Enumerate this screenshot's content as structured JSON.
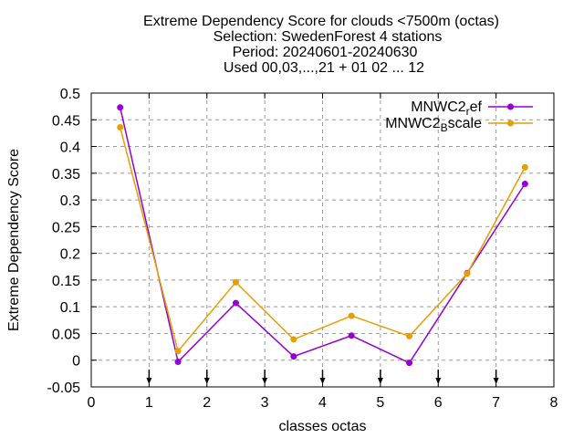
{
  "chart_data": {
    "type": "line",
    "title_lines": [
      "Extreme Dependency Score  for clouds <7500m (octas)",
      "Selection: SwedenForest      4 stations",
      "Period: 20240601-20240630",
      "Used 00,03,...,21 + 01 02 ... 12"
    ],
    "xlabel": "classes octas",
    "ylabel": "Extreme Dependency Score",
    "xlim": [
      0,
      8
    ],
    "ylim": [
      -0.05,
      0.5
    ],
    "xticks": [
      0,
      1,
      2,
      3,
      4,
      5,
      6,
      7,
      8
    ],
    "yticks": [
      -0.05,
      0,
      0.05,
      0.1,
      0.15,
      0.2,
      0.25,
      0.3,
      0.35,
      0.4,
      0.45,
      0.5
    ],
    "xtick_labels": [
      "0",
      "1",
      "2",
      "3",
      "4",
      "5",
      "6",
      "7",
      "8"
    ],
    "ytick_labels": [
      "-0.05",
      "0",
      "0.05",
      "0.1",
      "0.15",
      "0.2",
      "0.25",
      "0.3",
      "0.35",
      "0.4",
      "0.45",
      "0.5"
    ],
    "grid": true,
    "legend_position": "top-right",
    "class_arrows": [
      1,
      2,
      3,
      4,
      5,
      6,
      7
    ],
    "x": [
      0.5,
      1.5,
      2.5,
      3.5,
      4.5,
      5.5,
      6.5,
      7.5
    ],
    "series": [
      {
        "name": "MNWC2_ref",
        "legend_base": "MNWC2",
        "legend_sub": "r",
        "legend_rest": "ef",
        "color": "#9400d3",
        "values": [
          0.473,
          -0.003,
          0.107,
          0.007,
          0.046,
          -0.005,
          0.163,
          0.33
        ]
      },
      {
        "name": "MNWC2_Bscale",
        "legend_base": "MNWC2",
        "legend_sub": "B",
        "legend_rest": "scale",
        "color": "#e69f00",
        "values": [
          0.436,
          0.017,
          0.146,
          0.039,
          0.083,
          0.045,
          0.162,
          0.361
        ]
      }
    ]
  }
}
